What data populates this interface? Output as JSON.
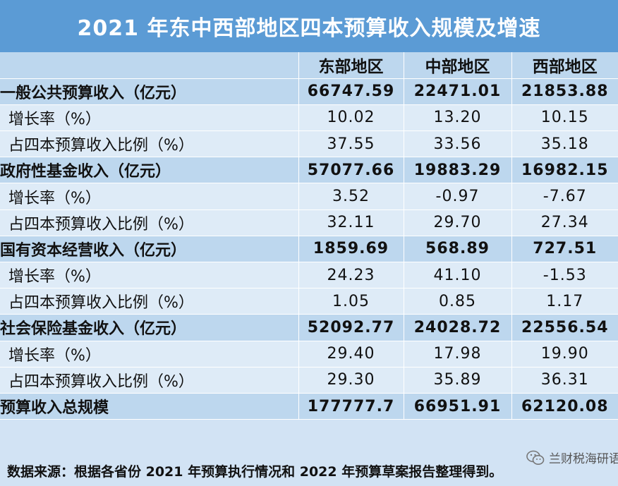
{
  "title": "2021 年东中西部地区四本预算收入规模及增速",
  "columns": [
    "",
    "东部地区",
    "中部地区",
    "西部地区"
  ],
  "rows": [
    {
      "label": "一般公共预算收入（亿元）",
      "values": [
        "66747.59",
        "22471.01",
        "21853.88"
      ],
      "type": "main"
    },
    {
      "label": "增长率（%）",
      "values": [
        "10.02",
        "13.20",
        "10.15"
      ],
      "type": "sub"
    },
    {
      "label": "占四本预算收入比例（%）",
      "values": [
        "37.55",
        "33.56",
        "35.18"
      ],
      "type": "sub"
    },
    {
      "label": "政府性基金收入（亿元）",
      "values": [
        "57077.66",
        "19883.29",
        "16982.15"
      ],
      "type": "main"
    },
    {
      "label": "增长率（%）",
      "values": [
        "3.52",
        "-0.97",
        "-7.67"
      ],
      "type": "sub"
    },
    {
      "label": "占四本预算收入比例（%）",
      "values": [
        "32.11",
        "29.70",
        "27.34"
      ],
      "type": "sub"
    },
    {
      "label": "国有资本经营收入（亿元）",
      "values": [
        "1859.69",
        "568.89",
        "727.51"
      ],
      "type": "main"
    },
    {
      "label": "增长率（%）",
      "values": [
        "24.23",
        "41.10",
        "-1.53"
      ],
      "type": "sub"
    },
    {
      "label": "占四本预算收入比例（%）",
      "values": [
        "1.05",
        "0.85",
        "1.17"
      ],
      "type": "sub"
    },
    {
      "label": "社会保险基金收入（亿元）",
      "values": [
        "52092.77",
        "24028.72",
        "22556.54"
      ],
      "type": "main"
    },
    {
      "label": "增长率（%）",
      "values": [
        "29.40",
        "17.98",
        "19.90"
      ],
      "type": "sub"
    },
    {
      "label": "占四本预算收入比例（%）",
      "values": [
        "29.30",
        "35.89",
        "36.31"
      ],
      "type": "sub"
    },
    {
      "label": "预算收入总规模",
      "values": [
        "177777.7",
        "66951.91",
        "62120.08"
      ],
      "type": "main"
    }
  ],
  "watermark": {
    "icon": "wechat-icon",
    "text": "兰财税海研语"
  },
  "source": "数据来源：根据各省份 2021 年预算执行情况和 2022 年预算草案报告整理得到。",
  "colors": {
    "title_bg": "#5b9bd5",
    "dark_row": "#bdd7ee",
    "light_row": "#deebf7",
    "page_bg": "#d2e3f4"
  }
}
